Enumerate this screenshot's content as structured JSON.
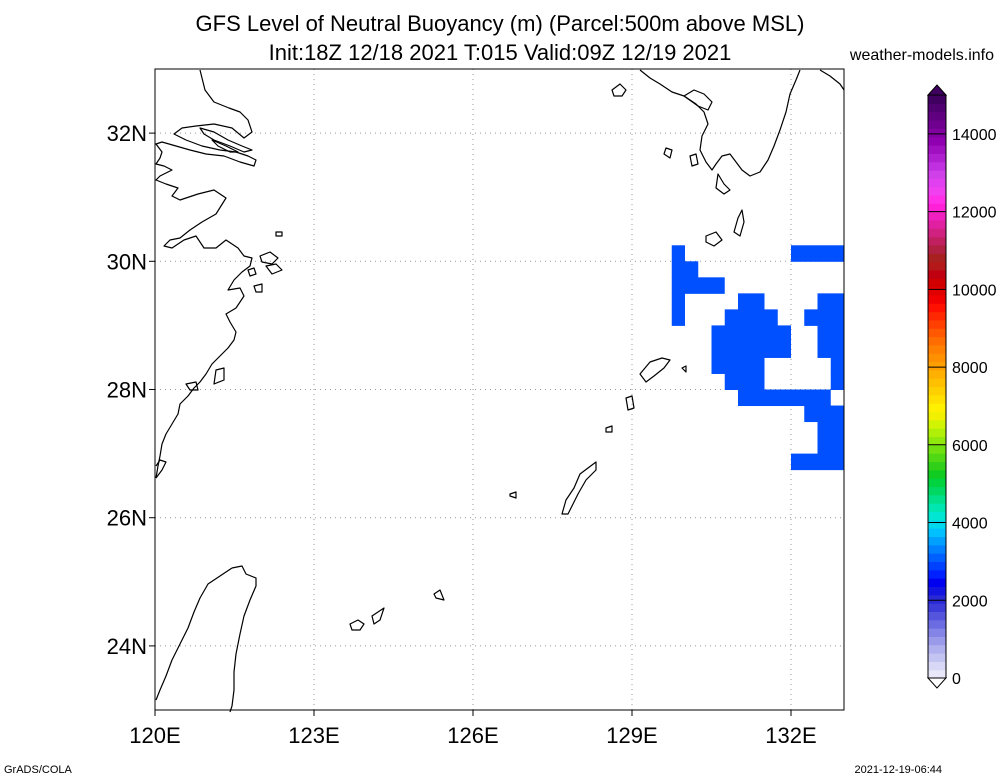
{
  "title": {
    "line1": "GFS Level of Neutral Buoyancy (m) (Parcel:500m above MSL)",
    "line2": "Init:18Z 12/18 2021 T:015 Valid:09Z 12/19 2021"
  },
  "source_label": "weather-models.info",
  "footer": {
    "left": "GrADS/COLA",
    "right": "2021-12-19-06:44"
  },
  "map": {
    "lon_range": [
      120,
      133
    ],
    "lat_range": [
      23,
      33
    ],
    "lon_ticks": [
      {
        "value": 120,
        "label": "120E"
      },
      {
        "value": 123,
        "label": "123E"
      },
      {
        "value": 126,
        "label": "126E"
      },
      {
        "value": 129,
        "label": "129E"
      },
      {
        "value": 132,
        "label": "132E"
      }
    ],
    "lat_ticks": [
      {
        "value": 24,
        "label": "24N"
      },
      {
        "value": 26,
        "label": "26N"
      },
      {
        "value": 28,
        "label": "28N"
      },
      {
        "value": 30,
        "label": "30N"
      },
      {
        "value": 32,
        "label": "32N"
      }
    ],
    "grid": "dotted",
    "shaded_color": "#0050ff",
    "cell_size_deg": 0.25,
    "shaded_rows": [
      {
        "lat": 30.25,
        "lon_from": 129.75,
        "lon_to": 130.0
      },
      {
        "lat": 30.25,
        "lon_from": 132.0,
        "lon_to": 133.0
      },
      {
        "lat": 30.0,
        "lon_from": 129.75,
        "lon_to": 130.25
      },
      {
        "lat": 29.75,
        "lon_from": 129.75,
        "lon_to": 130.75
      },
      {
        "lat": 29.5,
        "lon_from": 129.75,
        "lon_to": 130.0
      },
      {
        "lat": 29.5,
        "lon_from": 131.0,
        "lon_to": 131.5
      },
      {
        "lat": 29.5,
        "lon_from": 132.5,
        "lon_to": 133.0
      },
      {
        "lat": 29.25,
        "lon_from": 129.75,
        "lon_to": 130.0
      },
      {
        "lat": 29.25,
        "lon_from": 130.75,
        "lon_to": 131.75
      },
      {
        "lat": 29.25,
        "lon_from": 132.25,
        "lon_to": 133.0
      },
      {
        "lat": 29.0,
        "lon_from": 130.5,
        "lon_to": 132.0
      },
      {
        "lat": 29.0,
        "lon_from": 132.5,
        "lon_to": 133.0
      },
      {
        "lat": 28.75,
        "lon_from": 130.5,
        "lon_to": 132.0
      },
      {
        "lat": 28.75,
        "lon_from": 132.5,
        "lon_to": 133.0
      },
      {
        "lat": 28.5,
        "lon_from": 130.5,
        "lon_to": 131.5
      },
      {
        "lat": 28.5,
        "lon_from": 132.75,
        "lon_to": 133.0
      },
      {
        "lat": 28.25,
        "lon_from": 130.75,
        "lon_to": 131.5
      },
      {
        "lat": 28.25,
        "lon_from": 132.75,
        "lon_to": 133.0
      },
      {
        "lat": 28.0,
        "lon_from": 131.0,
        "lon_to": 132.75
      },
      {
        "lat": 27.75,
        "lon_from": 132.25,
        "lon_to": 133.0
      },
      {
        "lat": 27.5,
        "lon_from": 132.5,
        "lon_to": 133.0
      },
      {
        "lat": 27.25,
        "lon_from": 132.5,
        "lon_to": 133.0
      },
      {
        "lat": 27.0,
        "lon_from": 132.0,
        "lon_to": 133.0
      }
    ]
  },
  "colorbar": {
    "min": 0,
    "max": 15000,
    "labels": [
      {
        "value": 0,
        "text": "0"
      },
      {
        "value": 2000,
        "text": "2000"
      },
      {
        "value": 4000,
        "text": "4000"
      },
      {
        "value": 6000,
        "text": "6000"
      },
      {
        "value": 8000,
        "text": "8000"
      },
      {
        "value": 10000,
        "text": "10000"
      },
      {
        "value": 12000,
        "text": "12000"
      },
      {
        "value": 14000,
        "text": "14000"
      }
    ],
    "colors": [
      "#e8e8fa",
      "#d8d8f6",
      "#c4c4f2",
      "#b0b0ee",
      "#9a9aea",
      "#8484e6",
      "#6c6ce2",
      "#5454dc",
      "#3c3cd8",
      "#2828d4",
      "#1414e0",
      "#0000f0",
      "#0020ff",
      "#0040ff",
      "#0060ff",
      "#0080ff",
      "#00a0ff",
      "#00c0ff",
      "#00d8ee",
      "#00e6d2",
      "#00e6b0",
      "#00e08a",
      "#00d864",
      "#00d240",
      "#10cc20",
      "#30d018",
      "#50d814",
      "#70e010",
      "#90e80c",
      "#b0f008",
      "#d0f404",
      "#f0f000",
      "#fff000",
      "#ffe000",
      "#ffd000",
      "#ffc000",
      "#ffb000",
      "#ffa000",
      "#ff9000",
      "#ff8000",
      "#ff6c00",
      "#ff5800",
      "#ff4000",
      "#ff2800",
      "#ff1000",
      "#f00000",
      "#e00000",
      "#d00000",
      "#c00010",
      "#b41818",
      "#a82020",
      "#b02040",
      "#c02060",
      "#d02080",
      "#e020a0",
      "#f020c0",
      "#ff20d8",
      "#ff30e8",
      "#f040f0",
      "#e040f0",
      "#d040e8",
      "#c030e0",
      "#b020d0",
      "#a010c0",
      "#9000b0",
      "#8000a0",
      "#700090",
      "#600080",
      "#500070",
      "#400060"
    ]
  }
}
